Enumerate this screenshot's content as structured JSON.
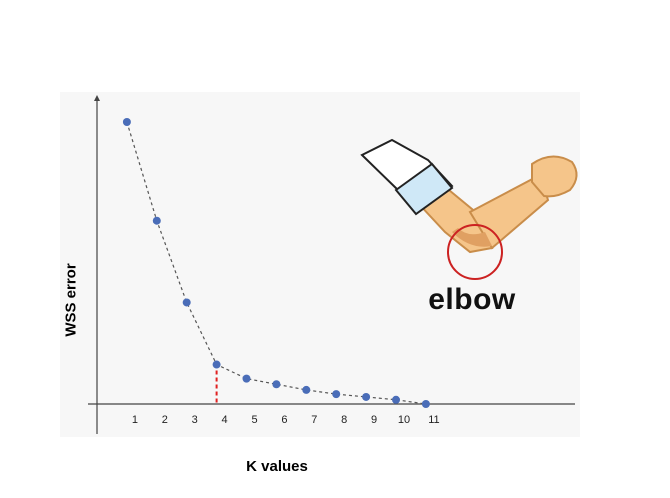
{
  "chart_data": {
    "type": "line",
    "title": "",
    "xlabel": "K values",
    "ylabel": "WSS error",
    "x": [
      1,
      2,
      3,
      4,
      5,
      6,
      7,
      8,
      9,
      10,
      11
    ],
    "series": [
      {
        "values": [
          100,
          65,
          36,
          14,
          9,
          7,
          5,
          3.5,
          2.5,
          1.5,
          0
        ]
      }
    ],
    "xlim": [
      0,
      12
    ],
    "ylim": [
      0,
      110
    ],
    "elbow_k": 4,
    "annotation": "elbow",
    "colors": {
      "marker": "#4a6db8",
      "line": "#555555",
      "elbow_marker": "#e02020",
      "circle": "#cc2222",
      "arm": "#f5c58a",
      "sleeve": "#cfe8f7"
    },
    "grid": false,
    "legend": "none"
  }
}
